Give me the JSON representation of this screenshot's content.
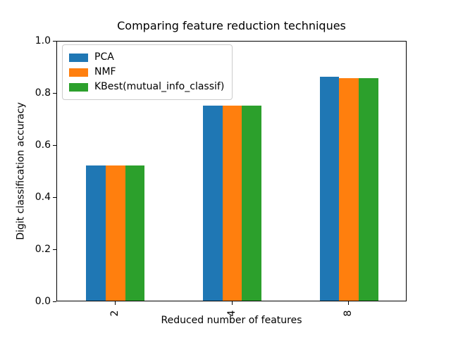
{
  "chart_data": {
    "type": "bar",
    "title": "Comparing feature reduction techniques",
    "xlabel": "Reduced number of features",
    "ylabel": "Digit classification accuracy",
    "categories": [
      "2",
      "4",
      "8"
    ],
    "series": [
      {
        "name": "PCA",
        "color": "#1f77b4",
        "values": [
          0.52,
          0.75,
          0.86
        ]
      },
      {
        "name": "NMF",
        "color": "#ff7f0e",
        "values": [
          0.52,
          0.75,
          0.855
        ]
      },
      {
        "name": "KBest(mutual_info_classif)",
        "color": "#2ca02c",
        "values": [
          0.52,
          0.75,
          0.855
        ]
      }
    ],
    "ylim": [
      0.0,
      1.0
    ],
    "y_ticks": [
      "0.0",
      "0.2",
      "0.4",
      "0.6",
      "0.8",
      "1.0"
    ],
    "x_tick_rotation": 90,
    "legend_position": "upper left",
    "grid": false,
    "background_color": "#ffffff",
    "spine_color": "#000000"
  }
}
